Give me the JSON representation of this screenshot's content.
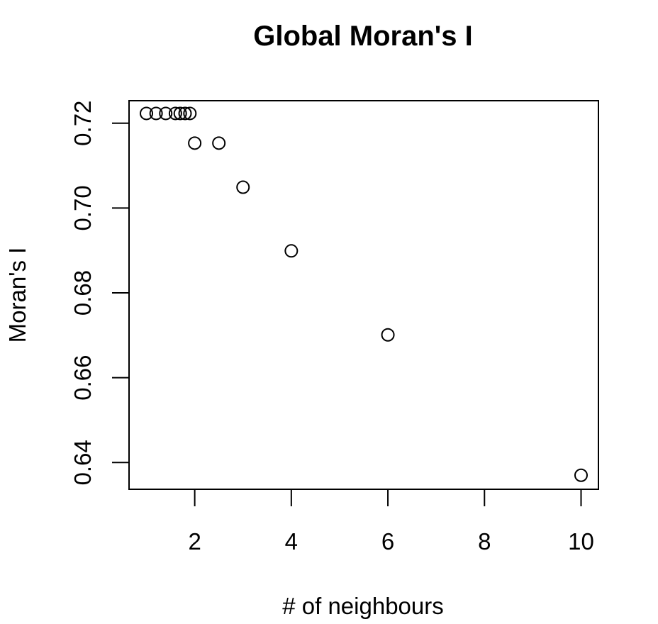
{
  "chart_data": {
    "type": "scatter",
    "title": "Global Moran's I",
    "xlabel": "# of neighbours",
    "ylabel": "Moran's I",
    "xlim": [
      0.64,
      10.36
    ],
    "ylim": [
      0.6337,
      0.7253
    ],
    "x_ticks": [
      2,
      4,
      6,
      8,
      10
    ],
    "x_tick_labels": [
      "2",
      "4",
      "6",
      "8",
      "10"
    ],
    "y_ticks": [
      0.64,
      0.66,
      0.68,
      0.7,
      0.72
    ],
    "y_tick_labels": [
      "0.64",
      "0.66",
      "0.68",
      "0.70",
      "0.72"
    ],
    "grid": false,
    "marker": "open-circle",
    "points": [
      {
        "x": 1.0,
        "y": 0.7223
      },
      {
        "x": 1.2,
        "y": 0.7223
      },
      {
        "x": 1.4,
        "y": 0.7223
      },
      {
        "x": 1.6,
        "y": 0.7223
      },
      {
        "x": 1.7,
        "y": 0.7223
      },
      {
        "x": 1.8,
        "y": 0.7223
      },
      {
        "x": 1.9,
        "y": 0.7223
      },
      {
        "x": 2.0,
        "y": 0.7153
      },
      {
        "x": 2.5,
        "y": 0.7153
      },
      {
        "x": 3.0,
        "y": 0.7049
      },
      {
        "x": 4.0,
        "y": 0.6899
      },
      {
        "x": 6.0,
        "y": 0.6701
      },
      {
        "x": 10.0,
        "y": 0.637
      }
    ]
  }
}
